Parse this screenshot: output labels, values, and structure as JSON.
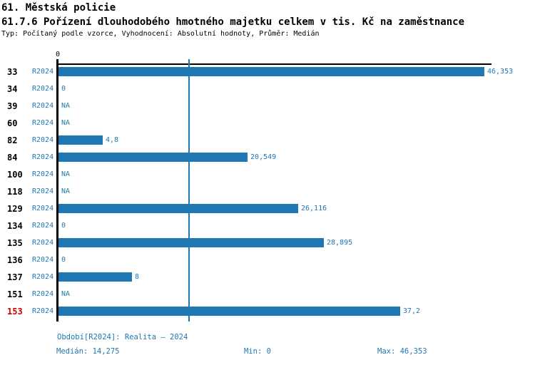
{
  "header": {
    "title": "61. Městská policie",
    "subtitle": "61.7.6 Pořízení dlouhodobého hmotného majetku celkem v tis. Kč na zaměstnance",
    "meta": "Typ: Počítaný podle vzorce, Vyhodnocení: Absolutní hodnoty, Průměr: Medián"
  },
  "chart_data": {
    "type": "bar",
    "orientation": "horizontal",
    "title": "61.7.6 Pořízení dlouhodobého hmotného majetku celkem v tis. Kč na zaměstnance",
    "xlabel": "",
    "ylabel": "",
    "xlim": [
      0,
      47.2
    ],
    "grid": false,
    "x_axis": {
      "ticks": [
        {
          "value": 0,
          "label": "0"
        }
      ]
    },
    "series_label": "R2024",
    "median_line_value": 14.275,
    "categories": [
      "33",
      "34",
      "39",
      "60",
      "82",
      "84",
      "100",
      "118",
      "129",
      "134",
      "135",
      "136",
      "137",
      "151",
      "153"
    ],
    "rows": [
      {
        "id": "33",
        "period": "R2024",
        "value": 46.353,
        "label": "46,353",
        "highlight": false
      },
      {
        "id": "34",
        "period": "R2024",
        "value": 0,
        "label": "0",
        "highlight": false
      },
      {
        "id": "39",
        "period": "R2024",
        "value": null,
        "label": "NA",
        "highlight": false
      },
      {
        "id": "60",
        "period": "R2024",
        "value": null,
        "label": "NA",
        "highlight": false
      },
      {
        "id": "82",
        "period": "R2024",
        "value": 4.8,
        "label": "4,8",
        "highlight": false
      },
      {
        "id": "84",
        "period": "R2024",
        "value": 20.549,
        "label": "20,549",
        "highlight": false
      },
      {
        "id": "100",
        "period": "R2024",
        "value": null,
        "label": "NA",
        "highlight": false
      },
      {
        "id": "118",
        "period": "R2024",
        "value": null,
        "label": "NA",
        "highlight": false
      },
      {
        "id": "129",
        "period": "R2024",
        "value": 26.116,
        "label": "26,116",
        "highlight": false
      },
      {
        "id": "134",
        "period": "R2024",
        "value": 0,
        "label": "0",
        "highlight": false
      },
      {
        "id": "135",
        "period": "R2024",
        "value": 28.895,
        "label": "28,895",
        "highlight": false
      },
      {
        "id": "136",
        "period": "R2024",
        "value": 0,
        "label": "0",
        "highlight": false
      },
      {
        "id": "137",
        "period": "R2024",
        "value": 8,
        "label": "8",
        "highlight": false
      },
      {
        "id": "151",
        "period": "R2024",
        "value": null,
        "label": "NA",
        "highlight": false
      },
      {
        "id": "153",
        "period": "R2024",
        "value": 37.2,
        "label": "37,2",
        "highlight": true
      }
    ],
    "colors": {
      "bar": "#1f77b4",
      "median_line": "#1f77b4",
      "accent_text": "#1f77b4",
      "highlight": "#cc0000",
      "axis": "#000000"
    }
  },
  "footer": {
    "period_note": "Období[R2024]: Realita – 2024",
    "median_label": "Medián: 14,275",
    "min_label": "Min: 0",
    "max_label": "Max: 46,353"
  }
}
